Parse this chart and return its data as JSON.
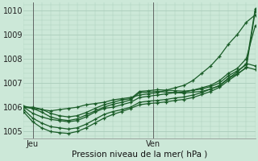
{
  "xlabel": "Pression niveau de la mer( hPa )",
  "bg_color": "#cce8d8",
  "grid_color": "#aaccbb",
  "line_color": "#1a5c28",
  "ylim": [
    1004.7,
    1010.3
  ],
  "yticks": [
    1005,
    1006,
    1007,
    1008,
    1009,
    1010
  ],
  "xlim": [
    0,
    26
  ],
  "x_jeu": 1.0,
  "x_ven": 14.5,
  "xtick_labels": [
    "Jeu",
    "Ven"
  ],
  "series": [
    [
      1006.0,
      1005.95,
      1005.9,
      1005.85,
      1005.9,
      1005.95,
      1006.0,
      1006.1,
      1006.15,
      1006.2,
      1006.3,
      1006.35,
      1006.4,
      1006.5,
      1006.55,
      1006.6,
      1006.7,
      1006.8,
      1006.9,
      1007.1,
      1007.4,
      1007.7,
      1008.1,
      1008.6,
      1009.0,
      1009.5,
      1009.8
    ],
    [
      1006.0,
      1005.75,
      1005.6,
      1005.5,
      1005.45,
      1005.4,
      1005.45,
      1005.6,
      1005.8,
      1005.95,
      1006.0,
      1006.1,
      1006.2,
      1006.4,
      1006.45,
      1006.5,
      1006.55,
      1006.6,
      1006.62,
      1006.7,
      1006.8,
      1006.9,
      1007.1,
      1007.4,
      1007.6,
      1008.0,
      1009.35
    ],
    [
      1005.9,
      1005.55,
      1005.35,
      1005.2,
      1005.15,
      1005.1,
      1005.15,
      1005.3,
      1005.5,
      1005.7,
      1005.82,
      1005.9,
      1006.0,
      1006.2,
      1006.25,
      1006.28,
      1006.32,
      1006.38,
      1006.42,
      1006.5,
      1006.6,
      1006.75,
      1006.9,
      1007.2,
      1007.45,
      1007.8,
      1007.7
    ],
    [
      1005.8,
      1005.4,
      1005.15,
      1005.0,
      1004.95,
      1004.92,
      1005.0,
      1005.15,
      1005.35,
      1005.55,
      1005.7,
      1005.82,
      1005.95,
      1006.1,
      1006.15,
      1006.18,
      1006.22,
      1006.28,
      1006.32,
      1006.4,
      1006.52,
      1006.65,
      1006.82,
      1007.1,
      1007.35,
      1007.65,
      1007.55
    ],
    [
      1006.0,
      1006.0,
      1005.92,
      1005.75,
      1005.65,
      1005.6,
      1005.65,
      1005.78,
      1005.95,
      1006.1,
      1006.2,
      1006.3,
      1006.35,
      1006.65,
      1006.68,
      1006.72,
      1006.7,
      1006.68,
      1006.66,
      1006.7,
      1006.75,
      1006.85,
      1007.0,
      1007.3,
      1007.5,
      1007.75,
      1010.05
    ],
    [
      1006.05,
      1005.95,
      1005.8,
      1005.6,
      1005.5,
      1005.45,
      1005.52,
      1005.68,
      1005.85,
      1006.0,
      1006.12,
      1006.2,
      1006.3,
      1006.6,
      1006.62,
      1006.65,
      1006.62,
      1006.6,
      1006.58,
      1006.62,
      1006.65,
      1006.75,
      1006.88,
      1007.18,
      1007.38,
      1007.62,
      1009.95
    ]
  ]
}
